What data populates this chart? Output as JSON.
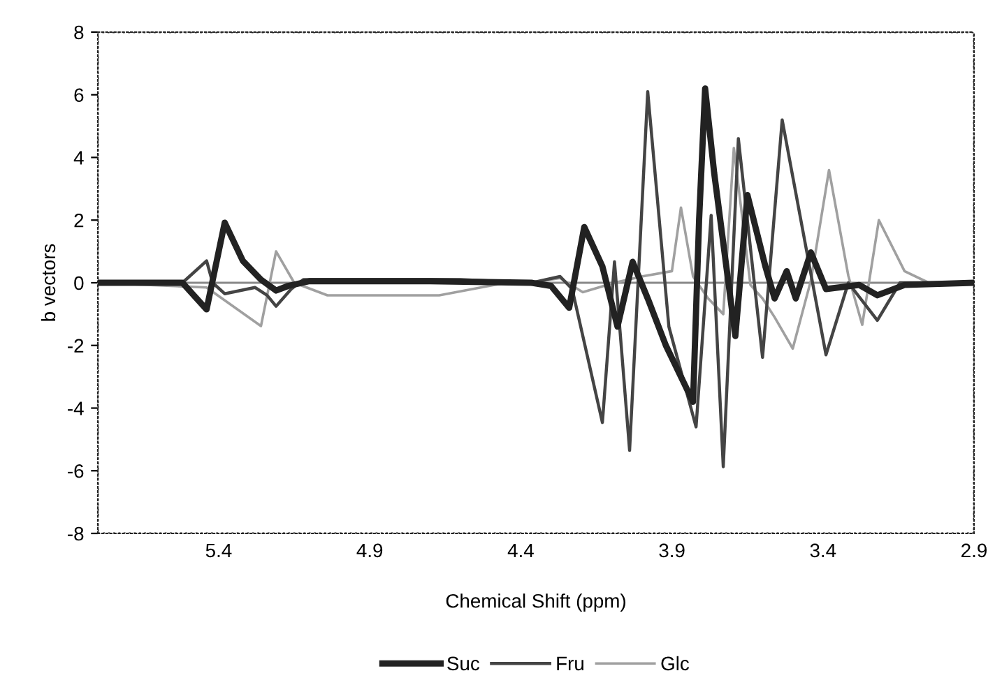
{
  "chart_data": {
    "type": "line",
    "xlabel": "Chemical Shift (ppm)",
    "ylabel": "b vectors",
    "xlim": [
      5.8,
      2.9
    ],
    "xticks": [
      5.4,
      4.9,
      4.4,
      3.9,
      3.4,
      2.9
    ],
    "ylim": [
      -8,
      8
    ],
    "yticks": [
      -8,
      -6,
      -4,
      -2,
      0,
      2,
      4,
      6,
      8
    ],
    "grid": false,
    "legend": "bottom",
    "marker": "none",
    "line_style": "solid",
    "ref_lines": [
      {
        "axis": "y",
        "value": 0,
        "color": "#888888"
      }
    ],
    "series": [
      {
        "name": "Suc",
        "color": "#222222",
        "x": [
          5.8,
          5.52,
          5.44,
          5.38,
          5.32,
          5.26,
          5.21,
          5.17,
          5.1,
          4.7,
          4.365,
          4.3,
          4.24,
          4.19,
          4.13,
          4.08,
          4.03,
          3.98,
          3.92,
          3.86,
          3.83,
          3.81,
          3.79,
          3.76,
          3.69,
          3.65,
          3.59,
          3.56,
          3.52,
          3.49,
          3.44,
          3.39,
          3.28,
          3.22,
          3.13,
          2.9
        ],
        "values": [
          0,
          0,
          -0.85,
          1.92,
          0.7,
          0.1,
          -0.25,
          -0.1,
          0.05,
          0.05,
          0,
          -0.1,
          -0.8,
          1.78,
          0.52,
          -1.4,
          0.67,
          -0.5,
          -2.0,
          -3.2,
          -3.8,
          2.0,
          6.2,
          3.5,
          -1.7,
          2.8,
          0.5,
          -0.5,
          0.37,
          -0.5,
          0.97,
          -0.2,
          -0.07,
          -0.4,
          -0.07,
          0
        ]
      },
      {
        "name": "Fru",
        "color": "#444444",
        "x": [
          5.8,
          5.52,
          5.44,
          5.42,
          5.38,
          5.28,
          5.24,
          5.21,
          5.16,
          5.12,
          4.6,
          4.365,
          4.27,
          4.23,
          4.13,
          4.09,
          4.04,
          3.98,
          3.91,
          3.82,
          3.77,
          3.73,
          3.68,
          3.6,
          3.535,
          3.39,
          3.316,
          3.22,
          3.145,
          2.9
        ],
        "values": [
          0,
          0,
          0.7,
          0,
          -0.35,
          -0.15,
          -0.4,
          -0.75,
          -0.2,
          0.1,
          0.1,
          0,
          0.2,
          -0.2,
          -4.46,
          0.67,
          -5.35,
          6.1,
          -1.4,
          -4.6,
          2.15,
          -5.87,
          4.6,
          -2.38,
          5.2,
          -2.3,
          0,
          -1.2,
          0,
          0
        ]
      },
      {
        "name": "Glc",
        "color": "#a0a0a0",
        "x": [
          5.8,
          5.44,
          5.26,
          5.21,
          5.15,
          5.04,
          4.67,
          4.45,
          4.365,
          4.27,
          4.195,
          4.09,
          4.0,
          3.9,
          3.87,
          3.83,
          3.78,
          3.73,
          3.695,
          3.64,
          3.6,
          3.56,
          3.5,
          3.44,
          3.38,
          3.316,
          3.27,
          3.215,
          3.13,
          3.05,
          2.9
        ],
        "values": [
          0,
          -0.15,
          -1.38,
          1.0,
          0,
          -0.4,
          -0.4,
          0,
          0,
          0.15,
          -0.3,
          0,
          0.2,
          0.37,
          2.4,
          0.2,
          -0.5,
          -1.0,
          4.3,
          -0.07,
          -0.5,
          -1.1,
          -2.1,
          0.07,
          3.6,
          0.22,
          -1.34,
          2.0,
          0.37,
          0,
          0
        ]
      }
    ]
  }
}
